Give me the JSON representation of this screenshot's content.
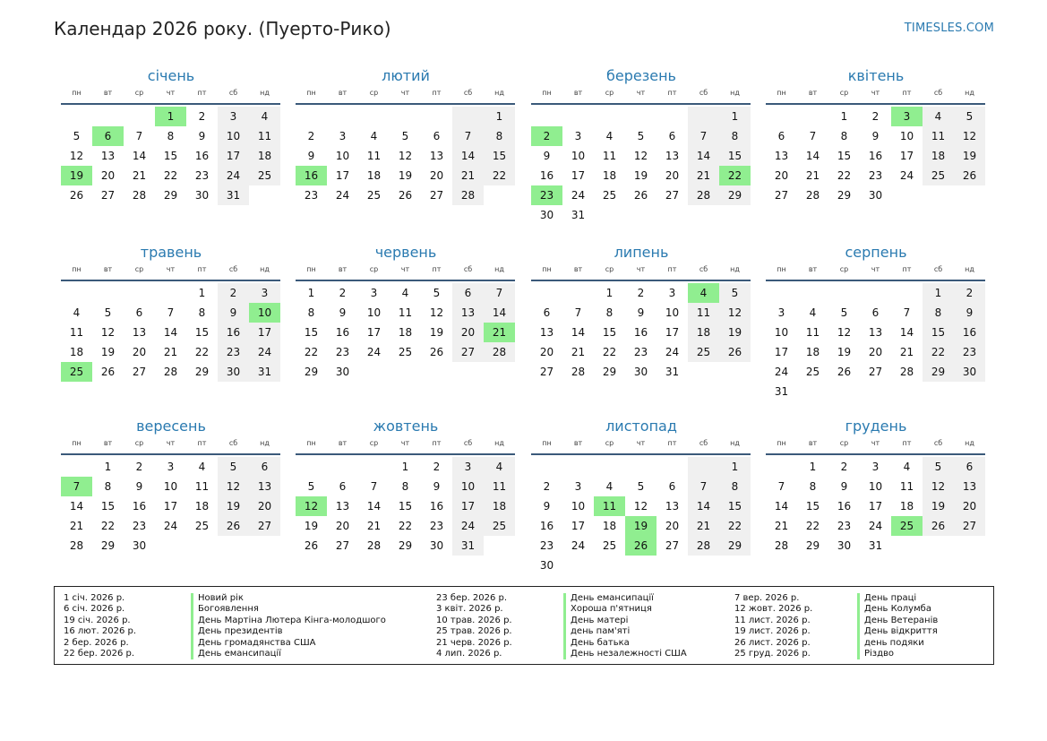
{
  "title": "Календар 2026 року. (Пуерто-Рико)",
  "brand": "TIMESLES.COM",
  "colors": {
    "accent": "#2a7ab0",
    "holiday": "#90ee90",
    "weekend": "#f0f0f0"
  },
  "weekdays": [
    "пн",
    "вт",
    "ср",
    "чт",
    "пт",
    "сб",
    "нд"
  ],
  "months": [
    {
      "name": "січень",
      "offset": 3,
      "days": 31,
      "holidays": [
        1,
        6,
        19
      ]
    },
    {
      "name": "лютий",
      "offset": 6,
      "days": 28,
      "holidays": [
        16
      ]
    },
    {
      "name": "березень",
      "offset": 6,
      "days": 31,
      "holidays": [
        2,
        22,
        23
      ]
    },
    {
      "name": "квітень",
      "offset": 2,
      "days": 30,
      "holidays": [
        3
      ]
    },
    {
      "name": "травень",
      "offset": 4,
      "days": 31,
      "holidays": [
        10,
        25
      ]
    },
    {
      "name": "червень",
      "offset": 0,
      "days": 30,
      "holidays": [
        21
      ]
    },
    {
      "name": "липень",
      "offset": 2,
      "days": 31,
      "holidays": [
        4
      ]
    },
    {
      "name": "серпень",
      "offset": 5,
      "days": 31,
      "holidays": []
    },
    {
      "name": "вересень",
      "offset": 1,
      "days": 30,
      "holidays": [
        7
      ]
    },
    {
      "name": "жовтень",
      "offset": 3,
      "days": 31,
      "holidays": [
        12
      ]
    },
    {
      "name": "листопад",
      "offset": 6,
      "days": 30,
      "holidays": [
        11,
        19,
        26
      ]
    },
    {
      "name": "грудень",
      "offset": 1,
      "days": 31,
      "holidays": [
        25
      ]
    }
  ],
  "legend": [
    {
      "dates": [
        "1 січ. 2026 р.",
        "6 січ. 2026 р.",
        "19 січ. 2026 р.",
        "16 лют. 2026 р.",
        "2 бер. 2026 р.",
        "22 бер. 2026 р."
      ],
      "names": [
        "Новий рік",
        "Богоявлення",
        "День Мартіна Лютера Кінга-молодшого",
        "День президентів",
        "День громадянства США",
        "День емансипації"
      ]
    },
    {
      "dates": [
        "23 бер. 2026 р.",
        "3 квіт. 2026 р.",
        "10 трав. 2026 р.",
        "25 трав. 2026 р.",
        "21 черв. 2026 р.",
        "4 лип. 2026 р."
      ],
      "names": [
        "День емансипації",
        "Хороша п'ятниця",
        "День матері",
        "день пам'яті",
        "День батька",
        "День незалежності США"
      ]
    },
    {
      "dates": [
        "7 вер. 2026 р.",
        "12 жовт. 2026 р.",
        "11 лист. 2026 р.",
        "19 лист. 2026 р.",
        "26 лист. 2026 р.",
        "25 груд. 2026 р."
      ],
      "names": [
        "День праці",
        "День Колумба",
        "День Ветеранів",
        "День відкриття",
        "день подяки",
        "Різдво"
      ]
    }
  ]
}
